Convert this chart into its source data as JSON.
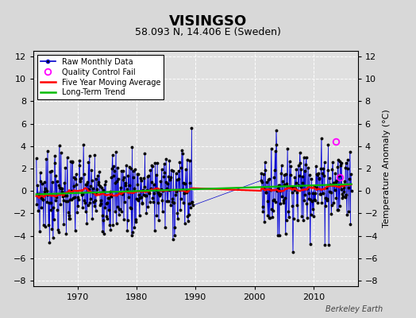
{
  "title": "VISINGSO",
  "subtitle": "58.093 N, 14.406 E (Sweden)",
  "ylabel_right": "Temperature Anomaly (°C)",
  "watermark": "Berkeley Earth",
  "ylim": [
    -8.5,
    12.5
  ],
  "yticks": [
    -8,
    -6,
    -4,
    -2,
    0,
    2,
    4,
    6,
    8,
    10,
    12
  ],
  "xlim_start": 1962.5,
  "xlim_end": 2017.5,
  "xticks": [
    1970,
    1980,
    1990,
    2000,
    2010
  ],
  "bg_color": "#d8d8d8",
  "plot_bg_color": "#e0e0e0",
  "grid_color": "#ffffff",
  "bar_color": "#8888ff",
  "line_color": "#0000cc",
  "ma_color": "#ff0000",
  "trend_color": "#00bb00",
  "qc_color": "#ff00ff",
  "title_fontsize": 13,
  "subtitle_fontsize": 9,
  "gap_start": 1989.5,
  "gap_end": 2001.0,
  "data_start": 1963.0,
  "data_end": 2016.5,
  "qc_times": [
    2013.75,
    2014.5
  ],
  "qc_vals": [
    4.4,
    1.2
  ]
}
